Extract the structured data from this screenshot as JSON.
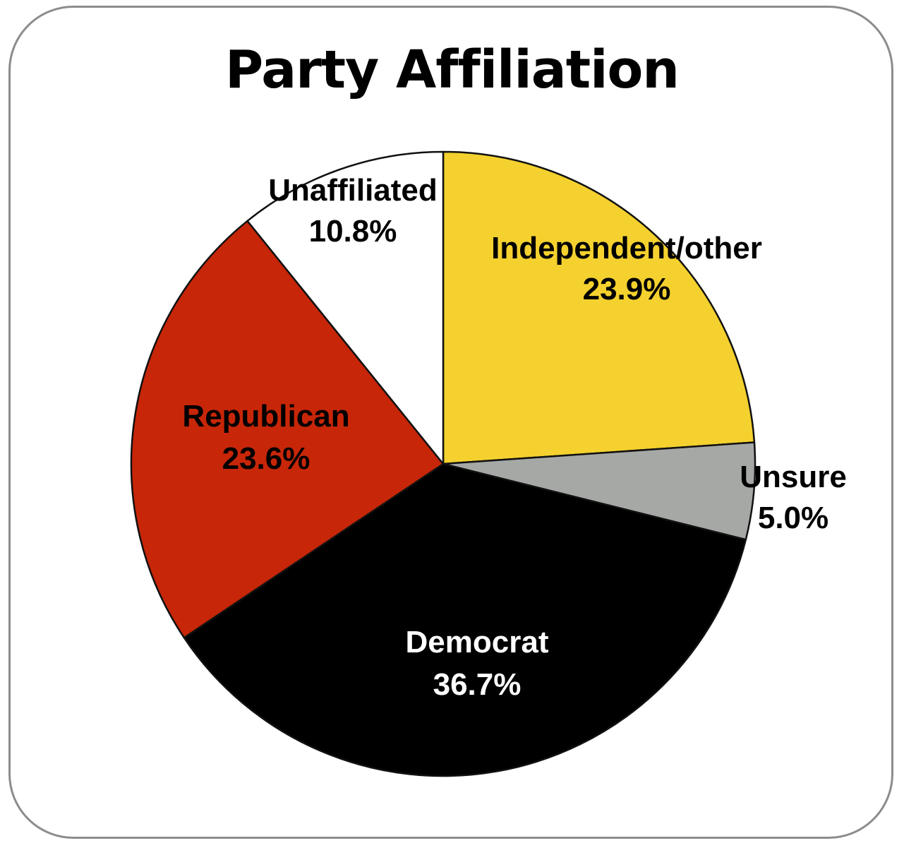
{
  "chart_data": {
    "type": "pie",
    "title": "Party Affiliation",
    "start_angle_deg": 0,
    "direction": "clockwise",
    "slices": [
      {
        "name": "Independent/other",
        "value_label": "23.9%",
        "value": 23.9,
        "color": "#F4D12E",
        "label_color": "#000000"
      },
      {
        "name": "Unsure",
        "value_label": "5.0%",
        "value": 5.0,
        "color": "#A6A8A6",
        "label_color": "#000000"
      },
      {
        "name": "Democrat",
        "value_label": "36.7%",
        "value": 36.7,
        "color": "#000000",
        "label_color": "#FFFFFF"
      },
      {
        "name": "Republican",
        "value_label": "23.6%",
        "value": 23.6,
        "color": "#C72608",
        "label_color": "#000000"
      },
      {
        "name": "Unaffiliated",
        "value_label": "10.8%",
        "value": 10.8,
        "color": "#FFFFFF",
        "label_color": "#000000"
      }
    ]
  }
}
